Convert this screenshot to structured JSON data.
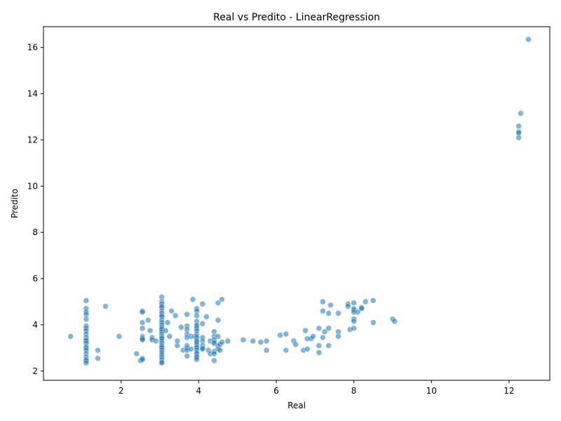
{
  "chart_data": {
    "type": "scatter",
    "title": "Real vs Predito - LinearRegression",
    "xlabel": "Real",
    "ylabel": "Predito",
    "xlim": [
      0.0,
      13.05
    ],
    "ylim": [
      1.6,
      16.9
    ],
    "xticks": [
      2,
      4,
      6,
      8,
      10,
      12
    ],
    "yticks": [
      2,
      4,
      6,
      8,
      10,
      12,
      14,
      16
    ],
    "grid": false,
    "marker_color": "#1f77b4",
    "marker_alpha": 0.55,
    "series": [
      {
        "points": [
          [
            0.7,
            3.5
          ],
          [
            1.1,
            5.05
          ],
          [
            1.1,
            4.7
          ],
          [
            1.1,
            4.55
          ],
          [
            1.1,
            4.45
          ],
          [
            1.1,
            4.25
          ],
          [
            1.1,
            3.95
          ],
          [
            1.1,
            3.85
          ],
          [
            1.1,
            3.75
          ],
          [
            1.1,
            3.6
          ],
          [
            1.1,
            3.45
          ],
          [
            1.1,
            3.35
          ],
          [
            1.1,
            3.3
          ],
          [
            1.1,
            3.2
          ],
          [
            1.1,
            3.05
          ],
          [
            1.1,
            3.0
          ],
          [
            1.1,
            2.9
          ],
          [
            1.1,
            2.75
          ],
          [
            1.1,
            2.6
          ],
          [
            1.1,
            2.5
          ],
          [
            1.1,
            2.45
          ],
          [
            1.1,
            2.35
          ],
          [
            1.4,
            2.9
          ],
          [
            1.4,
            2.55
          ],
          [
            1.6,
            4.8
          ],
          [
            1.95,
            3.5
          ],
          [
            2.4,
            2.75
          ],
          [
            2.5,
            2.45
          ],
          [
            2.55,
            4.6
          ],
          [
            2.55,
            4.55
          ],
          [
            2.55,
            4.1
          ],
          [
            2.55,
            3.85
          ],
          [
            2.55,
            3.5
          ],
          [
            2.55,
            3.45
          ],
          [
            2.55,
            3.4
          ],
          [
            2.55,
            3.35
          ],
          [
            2.55,
            2.55
          ],
          [
            2.55,
            2.5
          ],
          [
            2.7,
            4.2
          ],
          [
            2.75,
            3.75
          ],
          [
            2.8,
            3.45
          ],
          [
            2.8,
            3.35
          ],
          [
            2.9,
            3.3
          ],
          [
            3.05,
            5.2
          ],
          [
            3.05,
            5.0
          ],
          [
            3.05,
            4.9
          ],
          [
            3.05,
            4.8
          ],
          [
            3.05,
            4.75
          ],
          [
            3.05,
            4.6
          ],
          [
            3.05,
            4.5
          ],
          [
            3.05,
            4.4
          ],
          [
            3.05,
            4.35
          ],
          [
            3.05,
            4.2
          ],
          [
            3.05,
            4.1
          ],
          [
            3.05,
            4.0
          ],
          [
            3.05,
            3.9
          ],
          [
            3.05,
            3.85
          ],
          [
            3.05,
            3.8
          ],
          [
            3.05,
            3.7
          ],
          [
            3.05,
            3.6
          ],
          [
            3.05,
            3.5
          ],
          [
            3.05,
            3.45
          ],
          [
            3.05,
            3.4
          ],
          [
            3.05,
            3.3
          ],
          [
            3.05,
            3.2
          ],
          [
            3.05,
            3.1
          ],
          [
            3.05,
            3.05
          ],
          [
            3.05,
            3.0
          ],
          [
            3.05,
            2.9
          ],
          [
            3.05,
            2.8
          ],
          [
            3.05,
            2.7
          ],
          [
            3.05,
            2.6
          ],
          [
            3.05,
            2.5
          ],
          [
            3.05,
            2.4
          ],
          [
            3.05,
            2.35
          ],
          [
            3.15,
            3.75
          ],
          [
            3.2,
            4.1
          ],
          [
            3.25,
            3.5
          ],
          [
            3.3,
            4.6
          ],
          [
            3.4,
            4.4
          ],
          [
            3.45,
            3.1
          ],
          [
            3.45,
            3.3
          ],
          [
            3.55,
            3.9
          ],
          [
            3.6,
            2.9
          ],
          [
            3.7,
            4.45
          ],
          [
            3.7,
            3.95
          ],
          [
            3.7,
            3.8
          ],
          [
            3.7,
            3.6
          ],
          [
            3.7,
            3.45
          ],
          [
            3.7,
            3.1
          ],
          [
            3.7,
            3.0
          ],
          [
            3.7,
            2.9
          ],
          [
            3.7,
            2.65
          ],
          [
            3.8,
            3.5
          ],
          [
            3.8,
            2.95
          ],
          [
            3.85,
            5.1
          ],
          [
            3.9,
            3.5
          ],
          [
            3.95,
            4.7
          ],
          [
            3.95,
            4.6
          ],
          [
            3.95,
            4.4
          ],
          [
            3.95,
            4.15
          ],
          [
            3.95,
            4.0
          ],
          [
            3.95,
            3.95
          ],
          [
            3.95,
            3.85
          ],
          [
            3.95,
            3.75
          ],
          [
            3.95,
            3.6
          ],
          [
            3.95,
            3.5
          ],
          [
            3.95,
            3.45
          ],
          [
            3.95,
            3.35
          ],
          [
            3.95,
            3.3
          ],
          [
            3.95,
            3.25
          ],
          [
            3.95,
            3.15
          ],
          [
            3.95,
            3.05
          ],
          [
            3.95,
            3.0
          ],
          [
            3.95,
            2.9
          ],
          [
            3.95,
            2.8
          ],
          [
            3.95,
            2.75
          ],
          [
            3.95,
            2.65
          ],
          [
            3.95,
            2.6
          ],
          [
            3.95,
            2.5
          ],
          [
            4.1,
            4.9
          ],
          [
            4.1,
            4.05
          ],
          [
            4.1,
            3.45
          ],
          [
            4.1,
            3.3
          ],
          [
            4.1,
            3.1
          ],
          [
            4.1,
            3.0
          ],
          [
            4.1,
            2.95
          ],
          [
            4.2,
            4.35
          ],
          [
            4.25,
            2.9
          ],
          [
            4.3,
            3.3
          ],
          [
            4.3,
            2.75
          ],
          [
            4.4,
            3.7
          ],
          [
            4.4,
            3.5
          ],
          [
            4.4,
            3.35
          ],
          [
            4.4,
            3.25
          ],
          [
            4.4,
            3.2
          ],
          [
            4.4,
            2.85
          ],
          [
            4.4,
            2.75
          ],
          [
            4.4,
            2.45
          ],
          [
            4.5,
            4.2
          ],
          [
            4.5,
            4.95
          ],
          [
            4.5,
            3.5
          ],
          [
            4.5,
            3.1
          ],
          [
            4.5,
            2.95
          ],
          [
            4.55,
            3.15
          ],
          [
            4.55,
            2.9
          ],
          [
            4.6,
            5.1
          ],
          [
            4.6,
            3.25
          ],
          [
            4.75,
            3.3
          ],
          [
            5.15,
            3.35
          ],
          [
            5.4,
            3.3
          ],
          [
            5.6,
            3.25
          ],
          [
            5.75,
            3.3
          ],
          [
            5.75,
            2.9
          ],
          [
            6.1,
            3.55
          ],
          [
            6.25,
            3.6
          ],
          [
            6.25,
            2.9
          ],
          [
            6.45,
            3.3
          ],
          [
            6.5,
            3.15
          ],
          [
            6.7,
            2.9
          ],
          [
            6.75,
            3.75
          ],
          [
            6.8,
            3.4
          ],
          [
            6.8,
            2.95
          ],
          [
            6.9,
            3.4
          ],
          [
            6.95,
            3.5
          ],
          [
            7.1,
            3.85
          ],
          [
            7.1,
            3.1
          ],
          [
            7.1,
            2.8
          ],
          [
            7.2,
            5.0
          ],
          [
            7.2,
            4.6
          ],
          [
            7.2,
            3.45
          ],
          [
            7.25,
            3.7
          ],
          [
            7.35,
            4.5
          ],
          [
            7.35,
            3.85
          ],
          [
            7.35,
            3.1
          ],
          [
            7.4,
            4.85
          ],
          [
            7.6,
            4.5
          ],
          [
            7.6,
            3.7
          ],
          [
            7.6,
            3.5
          ],
          [
            7.85,
            4.9
          ],
          [
            7.85,
            4.8
          ],
          [
            7.9,
            3.8
          ],
          [
            8.0,
            4.95
          ],
          [
            8.0,
            4.7
          ],
          [
            8.0,
            4.65
          ],
          [
            8.0,
            4.55
          ],
          [
            8.0,
            4.25
          ],
          [
            8.0,
            4.15
          ],
          [
            8.0,
            3.85
          ],
          [
            8.1,
            4.55
          ],
          [
            8.2,
            4.75
          ],
          [
            8.2,
            4.7
          ],
          [
            8.3,
            5.0
          ],
          [
            8.5,
            5.05
          ],
          [
            8.5,
            4.1
          ],
          [
            9.0,
            4.25
          ],
          [
            9.05,
            4.15
          ],
          [
            12.25,
            12.6
          ],
          [
            12.25,
            12.35
          ],
          [
            12.25,
            12.3
          ],
          [
            12.25,
            12.1
          ],
          [
            12.3,
            13.15
          ],
          [
            12.5,
            16.35
          ]
        ]
      }
    ]
  }
}
